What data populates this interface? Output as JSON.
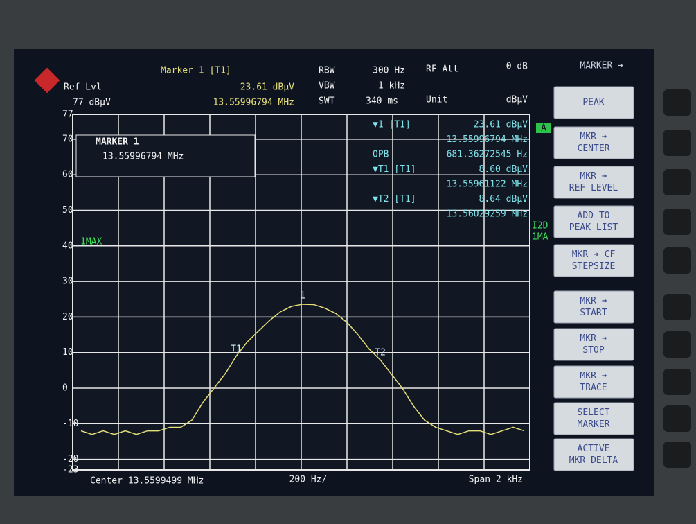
{
  "header": {
    "ref_lvl_label": "Ref Lvl",
    "ref_lvl": "77 dBµV",
    "marker_title": "Marker 1 [T1]",
    "marker_level": "23.61 dBµV",
    "marker_freq": "13.55996794 MHz",
    "rbw_label": "RBW",
    "rbw": "300 Hz",
    "vbw_label": "VBW",
    "vbw": "1 kHz",
    "swt_label": "SWT",
    "swt": "340 ms",
    "rf_att_label": "RF Att",
    "rf_att": "0 dB",
    "unit_label": "Unit",
    "unit": "dBµV"
  },
  "marker_box": {
    "title": "MARKER 1",
    "freq": "13.55996794 MHz"
  },
  "readouts": [
    {
      "label": "▼1 [T1]",
      "value": "23.61 dBµV"
    },
    {
      "value": "13.55996794 MHz"
    },
    {
      "label": "OPB",
      "value": "681.36272545 Hz"
    },
    {
      "label": "▼T1 [T1]",
      "value": "8.60 dBµV"
    },
    {
      "value": "13.55961122 MHz"
    },
    {
      "label": "▼T2 [T1]",
      "value": "8.64 dBµV"
    },
    {
      "value": "13.56029259 MHz"
    }
  ],
  "side_labels": {
    "trace_mode": "1MAX",
    "a": "A",
    "i2d": "I2D",
    "ma": "1MA"
  },
  "footer": {
    "center": "Center 13.5599499 MHz",
    "div": "200 Hz/",
    "span": "Span 2 kHz"
  },
  "softkeys": {
    "menu": "MARKER ➔",
    "buttons": [
      [
        "PEAK"
      ],
      [
        "MKR ➔",
        "CENTER"
      ],
      [
        "MKR ➔",
        "REF LEVEL"
      ],
      [
        "ADD TO",
        "PEAK LIST"
      ],
      [
        "MKR ➔ CF",
        "STEPSIZE"
      ],
      [
        "MKR ➔",
        "START"
      ],
      [
        "MKR ➔",
        "STOP"
      ],
      [
        "MKR ➔",
        "TRACE"
      ],
      [
        "SELECT",
        "MARKER"
      ],
      [
        "ACTIVE",
        "MKR DELTA"
      ]
    ]
  },
  "chart_data": {
    "type": "line",
    "color": "#e6de78",
    "categories": [
      null,
      null,
      null,
      null,
      null,
      null,
      null,
      null,
      null,
      null,
      null,
      null,
      null,
      null,
      null,
      null,
      null,
      null,
      null,
      null,
      null,
      null,
      null,
      null,
      null,
      null,
      null,
      null,
      null,
      null,
      null,
      null,
      null,
      null,
      null,
      null,
      null,
      null,
      null,
      null,
      null
    ],
    "values": [
      -12,
      -13,
      -12,
      -13,
      -12,
      -13,
      -12,
      -12,
      -11,
      -11,
      -9,
      -4,
      0,
      4,
      9,
      13,
      16,
      19,
      21.5,
      23,
      23.6,
      23.5,
      22.5,
      21,
      18.5,
      15,
      11,
      8,
      4,
      0,
      -5,
      -9,
      -11,
      -12,
      -13,
      -12,
      -12,
      -13,
      -12,
      -11,
      -12
    ],
    "ylim": [
      -23,
      77
    ],
    "yticks": [
      77,
      70,
      60,
      50,
      40,
      30,
      20,
      10,
      0,
      -10,
      -20,
      -23
    ],
    "grid": true,
    "trace_markers": [
      "1",
      "T1",
      "T2"
    ]
  }
}
